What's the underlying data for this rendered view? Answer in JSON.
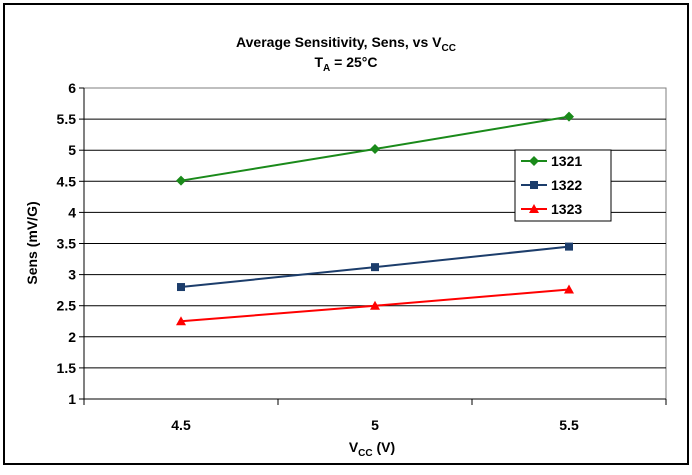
{
  "chart_data": {
    "type": "line",
    "title": "Average Sensitivity, Sens, vs V",
    "title_sub": "CC",
    "subtitle": "T",
    "subtitle_sub": "A",
    "subtitle_rest": " = 25°C",
    "xlabel": "V",
    "xlabel_sub": "CC",
    "xlabel_rest": " (V)",
    "ylabel": "Sens (mV/G)",
    "x": [
      4.5,
      5,
      5.5
    ],
    "x_tick_labels": [
      "4.5",
      "5",
      "5.5"
    ],
    "ylim": [
      1,
      6
    ],
    "y_tick_labels": [
      "1",
      "1.5",
      "2",
      "2.5",
      "3",
      "3.5",
      "4",
      "4.5",
      "5",
      "5.5",
      "6"
    ],
    "grid": "horizontal",
    "legend_position": "right",
    "series": [
      {
        "name": "1321",
        "values": [
          4.51,
          5.02,
          5.54
        ],
        "color": "#1a8a1a",
        "marker": "diamond"
      },
      {
        "name": "1322",
        "values": [
          2.8,
          3.12,
          3.45
        ],
        "color": "#1c3d6b",
        "marker": "square"
      },
      {
        "name": "1323",
        "values": [
          2.25,
          2.5,
          2.76
        ],
        "color": "#ff0000",
        "marker": "triangle"
      }
    ]
  }
}
